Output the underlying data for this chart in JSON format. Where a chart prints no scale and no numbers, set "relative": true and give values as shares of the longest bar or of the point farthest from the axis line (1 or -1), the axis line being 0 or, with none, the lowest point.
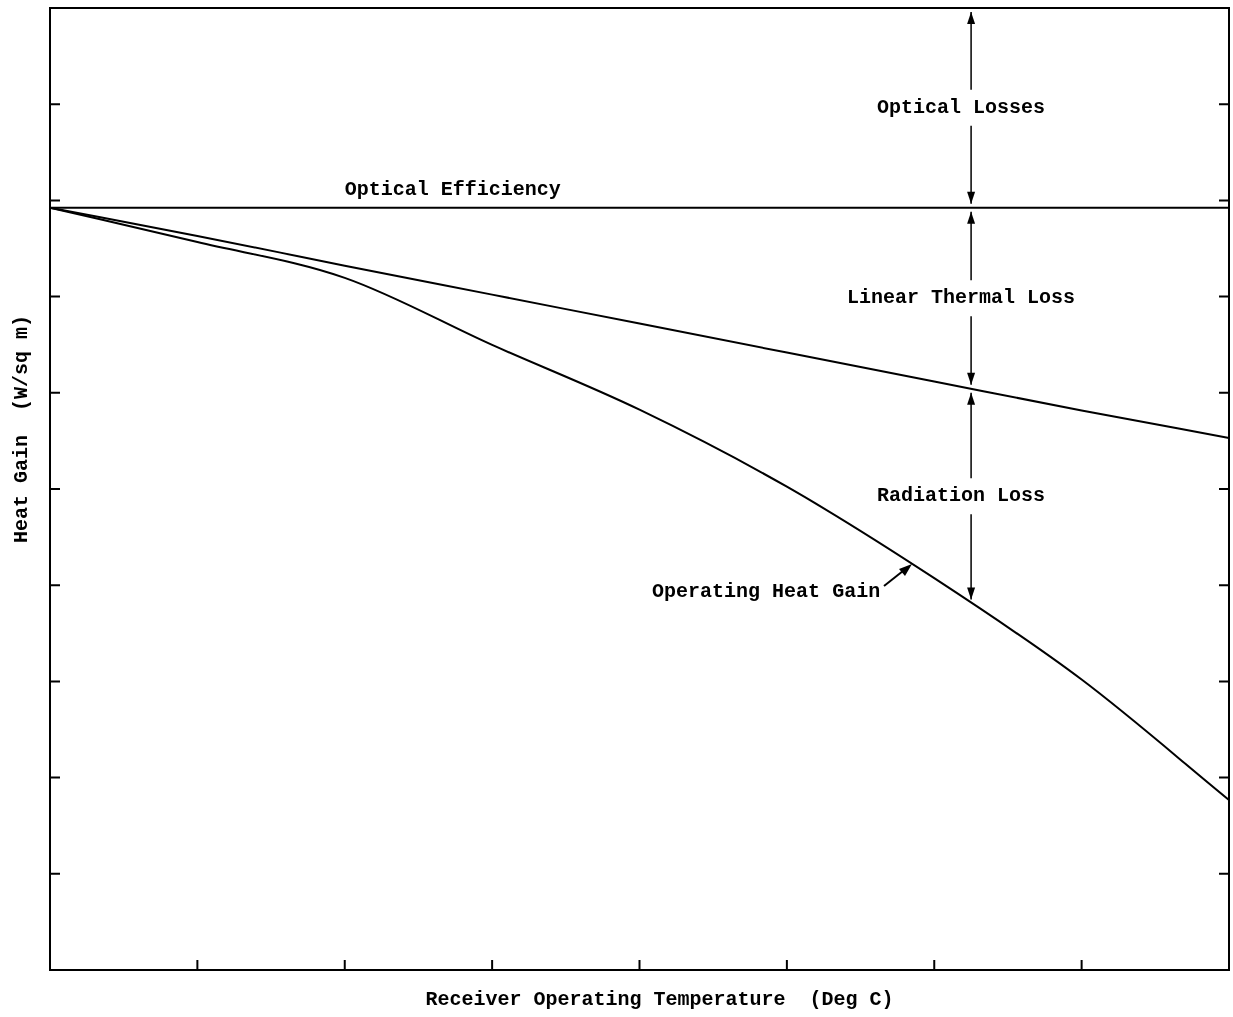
{
  "chart_data": {
    "type": "line",
    "xlabel": "Receiver Operating Temperature  (Deg C)",
    "ylabel": "Heat Gain  (W/sq m)",
    "relative": true,
    "legend": false,
    "marker": "none",
    "line_style": "solid",
    "categories": [
      null,
      null,
      null,
      null,
      null,
      null,
      null,
      null,
      null
    ],
    "series": [
      {
        "color": "#000000",
        "values": [
          1,
          1,
          1,
          1,
          1,
          1,
          1,
          1,
          1
        ]
      },
      {
        "color": "#000000",
        "values": [
          1,
          0.963,
          0.924,
          0.886,
          0.848,
          0.81,
          0.772,
          0.734,
          0.698
        ]
      },
      {
        "color": "#000000",
        "values": [
          1,
          0.955,
          0.908,
          0.82,
          0.735,
          0.634,
          0.514,
          0.381,
          0.223
        ]
      }
    ],
    "annotations": [
      "Optical Efficiency",
      "Optical Losses",
      "Linear Thermal Loss",
      "Radiation Loss",
      "Operating Heat Gain"
    ]
  }
}
